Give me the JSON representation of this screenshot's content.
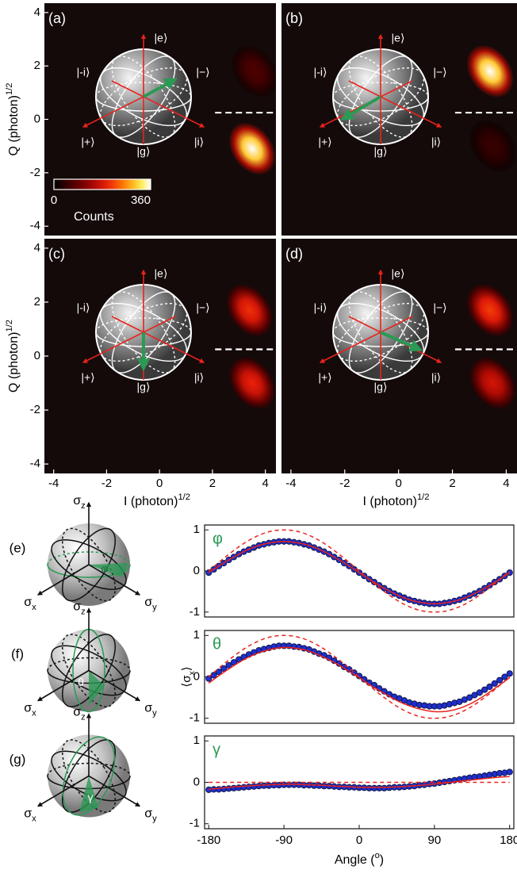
{
  "chart_data": [
    {
      "type": "heatmap",
      "label": "(a)",
      "xlim": [
        -4.35,
        4.4
      ],
      "ylim": [
        -4.35,
        4.35
      ],
      "yticks": [
        -4,
        -2,
        0,
        2,
        4
      ],
      "ylabel": "Q (photon)",
      "ylabel_sup": "1/2",
      "threshold": 0.25,
      "blobs": [
        {
          "I": 3.5,
          "Q": -1.1,
          "counts": 360
        },
        {
          "I": 3.6,
          "Q": 1.8,
          "counts": 70
        }
      ],
      "states": [
        "|e⟩",
        "|g⟩",
        "|+⟩",
        "|−⟩",
        "|i⟩",
        "|-i⟩"
      ],
      "colorbar": {
        "clim": [
          0,
          360
        ],
        "cticks": [
          0,
          360
        ],
        "label": "Counts"
      }
    },
    {
      "type": "heatmap",
      "label": "(b)",
      "xlim": [
        -4.35,
        4.4
      ],
      "ylim": [
        -4.35,
        4.35
      ],
      "threshold": 0.25,
      "blobs": [
        {
          "I": 3.4,
          "Q": 1.8,
          "counts": 360
        },
        {
          "I": 3.5,
          "Q": -1.0,
          "counts": 50
        }
      ],
      "states": [
        "|e⟩",
        "|g⟩",
        "|+⟩",
        "|−⟩",
        "|i⟩",
        "|-i⟩"
      ]
    },
    {
      "type": "heatmap",
      "label": "(c)",
      "xlim": [
        -4.35,
        4.4
      ],
      "ylim": [
        -4.35,
        4.35
      ],
      "yticks": [
        -4,
        -2,
        0,
        2,
        4
      ],
      "xticks": [
        -4,
        -2,
        0,
        2,
        4
      ],
      "ylabel": "Q (photon)",
      "ylabel_sup": "1/2",
      "xlabel": "I (photon)",
      "xlabel_sup": "1/2",
      "threshold": 0.25,
      "blobs": [
        {
          "I": 3.4,
          "Q": 1.7,
          "counts": 210
        },
        {
          "I": 3.5,
          "Q": -1.0,
          "counts": 200
        }
      ],
      "states": [
        "|e⟩",
        "|g⟩",
        "|+⟩",
        "|−⟩",
        "|i⟩",
        "|-i⟩"
      ]
    },
    {
      "type": "heatmap",
      "label": "(d)",
      "xlim": [
        -4.35,
        4.4
      ],
      "ylim": [
        -4.35,
        4.35
      ],
      "xticks": [
        -4,
        -2,
        0,
        2,
        4
      ],
      "xlabel": "I (photon)",
      "xlabel_sup": "1/2",
      "threshold": 0.25,
      "blobs": [
        {
          "I": 3.4,
          "Q": 1.7,
          "counts": 220
        },
        {
          "I": 3.5,
          "Q": -1.0,
          "counts": 180
        }
      ],
      "states": [
        "|e⟩",
        "|g⟩",
        "|+⟩",
        "|−⟩",
        "|i⟩",
        "|-i⟩"
      ]
    },
    {
      "type": "line",
      "label": "(e)",
      "symbol": "φ",
      "xlim": [
        -185,
        185
      ],
      "ylim": [
        -1.12,
        1.12
      ],
      "yticks": [
        -1,
        0,
        1
      ],
      "sphere_axes": [
        {
          "symbol": "σ",
          "sub": "z"
        },
        {
          "symbol": "σ",
          "sub": "x"
        },
        {
          "symbol": "σ",
          "sub": "y"
        }
      ],
      "series": [
        {
          "style": "markers",
          "color": "#1f2fd0",
          "x": [
            -180,
            -174,
            -168,
            -162,
            -156,
            -150,
            -144,
            -138,
            -132,
            -126,
            -120,
            -114,
            -108,
            -102,
            -96,
            -90,
            -84,
            -78,
            -72,
            -66,
            -60,
            -54,
            -48,
            -42,
            -36,
            -30,
            -24,
            -18,
            -12,
            -6,
            0,
            6,
            12,
            18,
            24,
            30,
            36,
            42,
            48,
            54,
            60,
            66,
            72,
            78,
            84,
            90,
            96,
            102,
            108,
            114,
            120,
            126,
            132,
            138,
            144,
            150,
            156,
            162,
            168,
            174,
            180
          ],
          "values": [
            -0.04,
            0.04,
            0.12,
            0.19,
            0.27,
            0.34,
            0.41,
            0.47,
            0.52,
            0.57,
            0.62,
            0.65,
            0.68,
            0.7,
            0.72,
            0.72,
            0.72,
            0.7,
            0.68,
            0.65,
            0.62,
            0.57,
            0.52,
            0.47,
            0.41,
            0.34,
            0.27,
            0.19,
            0.12,
            0.04,
            -0.04,
            -0.12,
            -0.2,
            -0.27,
            -0.35,
            -0.42,
            -0.49,
            -0.55,
            -0.6,
            -0.65,
            -0.7,
            -0.73,
            -0.76,
            -0.78,
            -0.8,
            -0.8,
            -0.8,
            -0.78,
            -0.76,
            -0.73,
            -0.7,
            -0.65,
            -0.6,
            -0.55,
            -0.49,
            -0.42,
            -0.35,
            -0.27,
            -0.2,
            -0.12,
            -0.04
          ]
        },
        {
          "style": "solid",
          "color": "#e8231c",
          "x": [
            -180,
            -165,
            -150,
            -135,
            -120,
            -105,
            -90,
            -75,
            -60,
            -45,
            -30,
            -15,
            0,
            15,
            30,
            45,
            60,
            75,
            90,
            105,
            120,
            135,
            150,
            165,
            180
          ],
          "values": [
            -0.04,
            0.16,
            0.34,
            0.5,
            0.62,
            0.69,
            0.72,
            0.69,
            0.62,
            0.5,
            0.34,
            0.16,
            -0.04,
            -0.24,
            -0.42,
            -0.58,
            -0.7,
            -0.77,
            -0.8,
            -0.77,
            -0.7,
            -0.58,
            -0.42,
            -0.24,
            -0.04
          ]
        },
        {
          "style": "dashed",
          "color": "#e8231c",
          "x": [
            -180,
            -165,
            -150,
            -135,
            -120,
            -105,
            -90,
            -75,
            -60,
            -45,
            -30,
            -15,
            0,
            15,
            30,
            45,
            60,
            75,
            90,
            105,
            120,
            135,
            150,
            165,
            180
          ],
          "values": [
            0,
            0.26,
            0.5,
            0.71,
            0.87,
            0.97,
            1,
            0.97,
            0.87,
            0.71,
            0.5,
            0.26,
            0,
            -0.26,
            -0.5,
            -0.71,
            -0.87,
            -0.97,
            -1,
            -0.97,
            -0.87,
            -0.71,
            -0.5,
            -0.26,
            0
          ]
        }
      ]
    },
    {
      "type": "line",
      "label": "(f)",
      "symbol": "θ",
      "xlim": [
        -185,
        185
      ],
      "ylim": [
        -1.12,
        1.12
      ],
      "yticks": [
        -1,
        0,
        1
      ],
      "ylabel": "⟨σ",
      "ylabel_sub": "x",
      "ylabel_end": "⟩",
      "sphere_axes": [
        {
          "symbol": "σ",
          "sub": "z"
        },
        {
          "symbol": "σ",
          "sub": "x"
        },
        {
          "symbol": "σ",
          "sub": "y"
        }
      ],
      "series": [
        {
          "style": "markers",
          "color": "#1f2fd0",
          "x": [
            -180,
            -174,
            -168,
            -162,
            -156,
            -150,
            -144,
            -138,
            -132,
            -126,
            -120,
            -114,
            -108,
            -102,
            -96,
            -90,
            -84,
            -78,
            -72,
            -66,
            -60,
            -54,
            -48,
            -42,
            -36,
            -30,
            -24,
            -18,
            -12,
            -6,
            0,
            6,
            12,
            18,
            24,
            30,
            36,
            42,
            48,
            54,
            60,
            66,
            72,
            78,
            84,
            90,
            96,
            102,
            108,
            114,
            120,
            126,
            132,
            138,
            144,
            150,
            156,
            162,
            168,
            174,
            180
          ],
          "values": [
            -0.04,
            0.04,
            0.12,
            0.2,
            0.28,
            0.35,
            0.42,
            0.48,
            0.54,
            0.59,
            0.64,
            0.67,
            0.7,
            0.73,
            0.75,
            0.75,
            0.75,
            0.73,
            0.72,
            0.69,
            0.66,
            0.61,
            0.56,
            0.52,
            0.46,
            0.39,
            0.32,
            0.24,
            0.18,
            0.1,
            0.02,
            -0.06,
            -0.14,
            -0.2,
            -0.28,
            -0.35,
            -0.42,
            -0.48,
            -0.52,
            -0.57,
            -0.62,
            -0.65,
            -0.68,
            -0.69,
            -0.71,
            -0.71,
            -0.71,
            -0.69,
            -0.66,
            -0.63,
            -0.6,
            -0.55,
            -0.5,
            -0.44,
            -0.38,
            -0.31,
            -0.24,
            -0.16,
            -0.08,
            0.0,
            0.08
          ]
        },
        {
          "style": "solid",
          "color": "#e8231c",
          "x": [
            -180,
            -165,
            -150,
            -135,
            -120,
            -105,
            -90,
            -75,
            -60,
            -45,
            -30,
            -15,
            0,
            15,
            30,
            45,
            60,
            75,
            90,
            105,
            120,
            135,
            150,
            165,
            180
          ],
          "values": [
            -0.15,
            0.07,
            0.27,
            0.45,
            0.58,
            0.67,
            0.71,
            0.69,
            0.62,
            0.5,
            0.35,
            0.17,
            -0.02,
            -0.22,
            -0.4,
            -0.57,
            -0.7,
            -0.79,
            -0.84,
            -0.83,
            -0.76,
            -0.63,
            -0.45,
            -0.24,
            -0.02
          ]
        },
        {
          "style": "dashed",
          "color": "#e8231c",
          "x": [
            -180,
            -165,
            -150,
            -135,
            -120,
            -105,
            -90,
            -75,
            -60,
            -45,
            -30,
            -15,
            0,
            15,
            30,
            45,
            60,
            75,
            90,
            105,
            120,
            135,
            150,
            165,
            180
          ],
          "values": [
            0,
            0.26,
            0.5,
            0.71,
            0.87,
            0.97,
            1,
            0.97,
            0.87,
            0.71,
            0.5,
            0.26,
            0,
            -0.26,
            -0.5,
            -0.71,
            -0.87,
            -0.97,
            -1,
            -0.97,
            -0.87,
            -0.71,
            -0.5,
            -0.26,
            0
          ]
        }
      ]
    },
    {
      "type": "line",
      "label": "(g)",
      "symbol": "γ",
      "xlim": [
        -185,
        185
      ],
      "ylim": [
        -1.12,
        1.12
      ],
      "yticks": [
        -1,
        0,
        1
      ],
      "xticks": [
        -180,
        -90,
        0,
        90,
        180
      ],
      "xlabel": "Angle (",
      "xlabel_sup": "o",
      "xlabel_end": ")",
      "sphere_axes": [
        {
          "symbol": "σ",
          "sub": "z"
        },
        {
          "symbol": "σ",
          "sub": "x"
        },
        {
          "symbol": "σ",
          "sub": "y"
        }
      ],
      "series": [
        {
          "style": "markers",
          "color": "#1f2fd0",
          "x": [
            -180,
            -174,
            -168,
            -162,
            -156,
            -150,
            -144,
            -138,
            -132,
            -126,
            -120,
            -114,
            -108,
            -102,
            -96,
            -90,
            -84,
            -78,
            -72,
            -66,
            -60,
            -54,
            -48,
            -42,
            -36,
            -30,
            -24,
            -18,
            -12,
            -6,
            0,
            6,
            12,
            18,
            24,
            30,
            36,
            42,
            48,
            54,
            60,
            66,
            72,
            78,
            84,
            90,
            96,
            102,
            108,
            114,
            120,
            126,
            132,
            138,
            144,
            150,
            156,
            162,
            168,
            174,
            180
          ],
          "values": [
            -0.18,
            -0.17,
            -0.17,
            -0.16,
            -0.15,
            -0.14,
            -0.13,
            -0.12,
            -0.11,
            -0.1,
            -0.09,
            -0.08,
            -0.08,
            -0.07,
            -0.07,
            -0.06,
            -0.06,
            -0.06,
            -0.06,
            -0.07,
            -0.07,
            -0.08,
            -0.08,
            -0.09,
            -0.09,
            -0.1,
            -0.11,
            -0.11,
            -0.12,
            -0.12,
            -0.13,
            -0.13,
            -0.14,
            -0.14,
            -0.14,
            -0.14,
            -0.13,
            -0.12,
            -0.12,
            -0.11,
            -0.1,
            -0.09,
            -0.07,
            -0.06,
            -0.04,
            -0.03,
            -0.01,
            0.01,
            0.03,
            0.05,
            0.07,
            0.09,
            0.11,
            0.13,
            0.14,
            0.16,
            0.18,
            0.2,
            0.22,
            0.23,
            0.25
          ]
        },
        {
          "style": "solid",
          "color": "#e8231c",
          "x": [
            -180,
            -165,
            -150,
            -135,
            -120,
            -105,
            -90,
            -75,
            -60,
            -45,
            -30,
            -15,
            0,
            15,
            30,
            45,
            60,
            75,
            90,
            105,
            120,
            135,
            150,
            165,
            180
          ],
          "values": [
            -0.17,
            -0.14,
            -0.11,
            -0.09,
            -0.07,
            -0.06,
            -0.05,
            -0.05,
            -0.06,
            -0.07,
            -0.09,
            -0.1,
            -0.12,
            -0.12,
            -0.12,
            -0.11,
            -0.09,
            -0.07,
            -0.04,
            -0.01,
            0.03,
            0.06,
            0.09,
            0.12,
            0.14
          ]
        },
        {
          "style": "dashed",
          "color": "#e8231c",
          "x": [
            -180,
            180
          ],
          "values": [
            0,
            0
          ]
        }
      ]
    }
  ]
}
